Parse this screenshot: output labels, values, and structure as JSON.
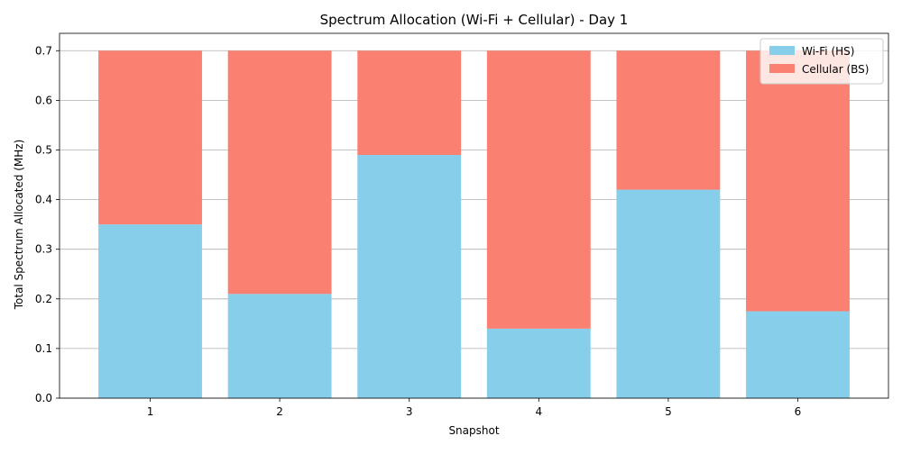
{
  "chart_data": {
    "type": "bar",
    "stacked": true,
    "title": "Spectrum Allocation (Wi-Fi + Cellular) - Day 1",
    "xlabel": "Snapshot",
    "ylabel": "Total Spectrum Allocated (MHz)",
    "categories": [
      "1",
      "2",
      "3",
      "4",
      "5",
      "6"
    ],
    "series": [
      {
        "name": "Wi-Fi (HS)",
        "color": "#87CEEB",
        "values": [
          0.35,
          0.21,
          0.49,
          0.14,
          0.42,
          0.175
        ]
      },
      {
        "name": "Cellular (BS)",
        "color": "#FA8072",
        "values": [
          0.35,
          0.49,
          0.21,
          0.56,
          0.28,
          0.525
        ]
      }
    ],
    "ylim": [
      0,
      0.735
    ],
    "yticks": [
      "0.0",
      "0.1",
      "0.2",
      "0.3",
      "0.4",
      "0.5",
      "0.6",
      "0.7"
    ],
    "grid": "y",
    "legend_position": "top-right"
  }
}
